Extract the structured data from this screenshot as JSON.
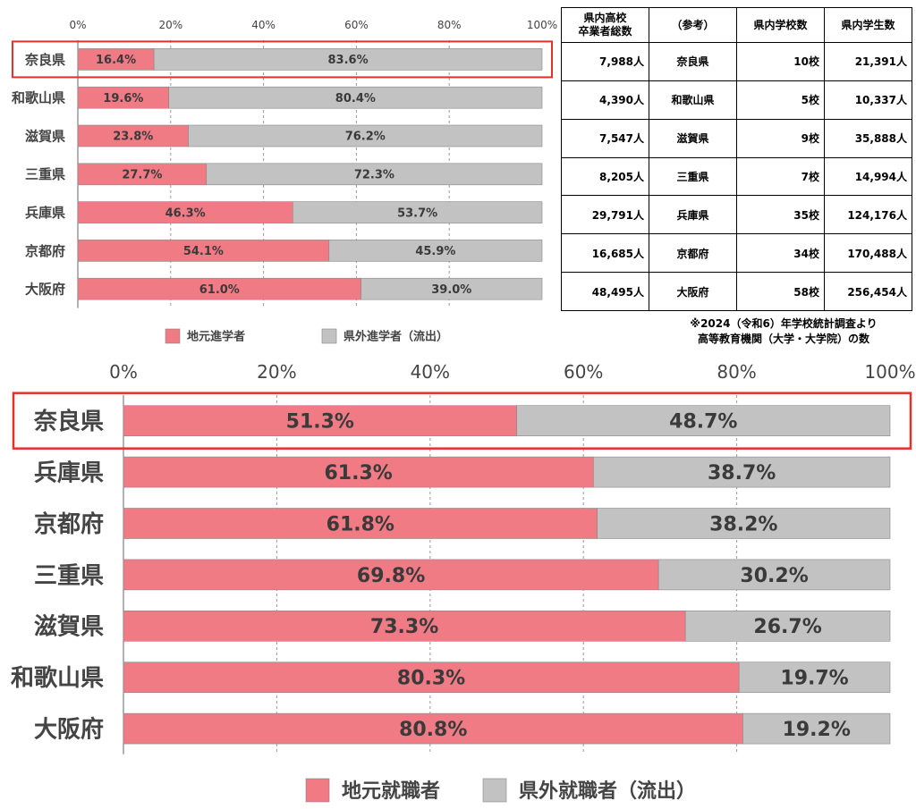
{
  "chart_data": [
    {
      "type": "bar",
      "orientation": "horizontal",
      "stacked": "percent",
      "categories": [
        "奈良県",
        "和歌山県",
        "滋賀県",
        "三重県",
        "兵庫県",
        "京都府",
        "大阪府"
      ],
      "series": [
        {
          "name": "地元進学者",
          "color": "#f07b85",
          "values": [
            16.4,
            19.6,
            23.8,
            27.7,
            46.3,
            54.1,
            61.0
          ]
        },
        {
          "name": "県外進学者（流出）",
          "color": "#c2c2c2",
          "values": [
            83.6,
            80.4,
            76.2,
            72.3,
            53.7,
            45.9,
            39.0
          ]
        }
      ],
      "value_labels": [
        [
          "16.4%",
          "19.6%",
          "23.8%",
          "27.7%",
          "46.3%",
          "54.1%",
          "61.0%"
        ],
        [
          "83.6%",
          "80.4%",
          "76.2%",
          "72.3%",
          "53.7%",
          "45.9%",
          "39.0%"
        ]
      ],
      "xlim": [
        0,
        100
      ],
      "xticks": [
        "0%",
        "20%",
        "40%",
        "60%",
        "80%",
        "100%"
      ],
      "highlight": "奈良県",
      "legend_position": "bottom",
      "grid": "vertical dashed"
    },
    {
      "type": "bar",
      "orientation": "horizontal",
      "stacked": "percent",
      "categories": [
        "奈良県",
        "兵庫県",
        "京都府",
        "三重県",
        "滋賀県",
        "和歌山県",
        "大阪府"
      ],
      "series": [
        {
          "name": "地元就職者",
          "color": "#f07b85",
          "values": [
            51.3,
            61.3,
            61.8,
            69.8,
            73.3,
            80.3,
            80.8
          ]
        },
        {
          "name": "県外就職者（流出）",
          "color": "#c2c2c2",
          "values": [
            48.7,
            38.7,
            38.2,
            30.2,
            26.7,
            19.7,
            19.2
          ]
        }
      ],
      "value_labels": [
        [
          "51.3%",
          "61.3%",
          "61.8%",
          "69.8%",
          "73.3%",
          "80.3%",
          "80.8%"
        ],
        [
          "48.7%",
          "38.7%",
          "38.2%",
          "30.2%",
          "26.7%",
          "19.7%",
          "19.2%"
        ]
      ],
      "xlim": [
        0,
        100
      ],
      "xticks": [
        "0%",
        "20%",
        "40%",
        "60%",
        "80%",
        "100%"
      ],
      "highlight": "奈良県",
      "legend_position": "bottom",
      "grid": "vertical dashed"
    }
  ],
  "reference_table": {
    "headers": [
      "県内高校\n卒業者総数",
      "（参考）",
      "県内学校数",
      "県内学生数"
    ],
    "rows": [
      [
        "7,988人",
        "奈良県",
        "10校",
        "21,391人"
      ],
      [
        "4,390人",
        "和歌山県",
        "5校",
        "10,337人"
      ],
      [
        "7,547人",
        "滋賀県",
        "9校",
        "35,888人"
      ],
      [
        "8,205人",
        "三重県",
        "7校",
        "14,994人"
      ],
      [
        "29,791人",
        "兵庫県",
        "35校",
        "124,176人"
      ],
      [
        "16,685人",
        "京都府",
        "34校",
        "170,488人"
      ],
      [
        "48,495人",
        "大阪府",
        "58校",
        "256,454人"
      ]
    ],
    "note_lines": [
      "※2024（令和6）年学校統計調査より",
      "高等教育機関（大学・大学院）の数"
    ]
  },
  "colors": {
    "local": "#f07b85",
    "outflow": "#c2c2c2",
    "highlight": "#e8302a",
    "axis": "#666666"
  }
}
